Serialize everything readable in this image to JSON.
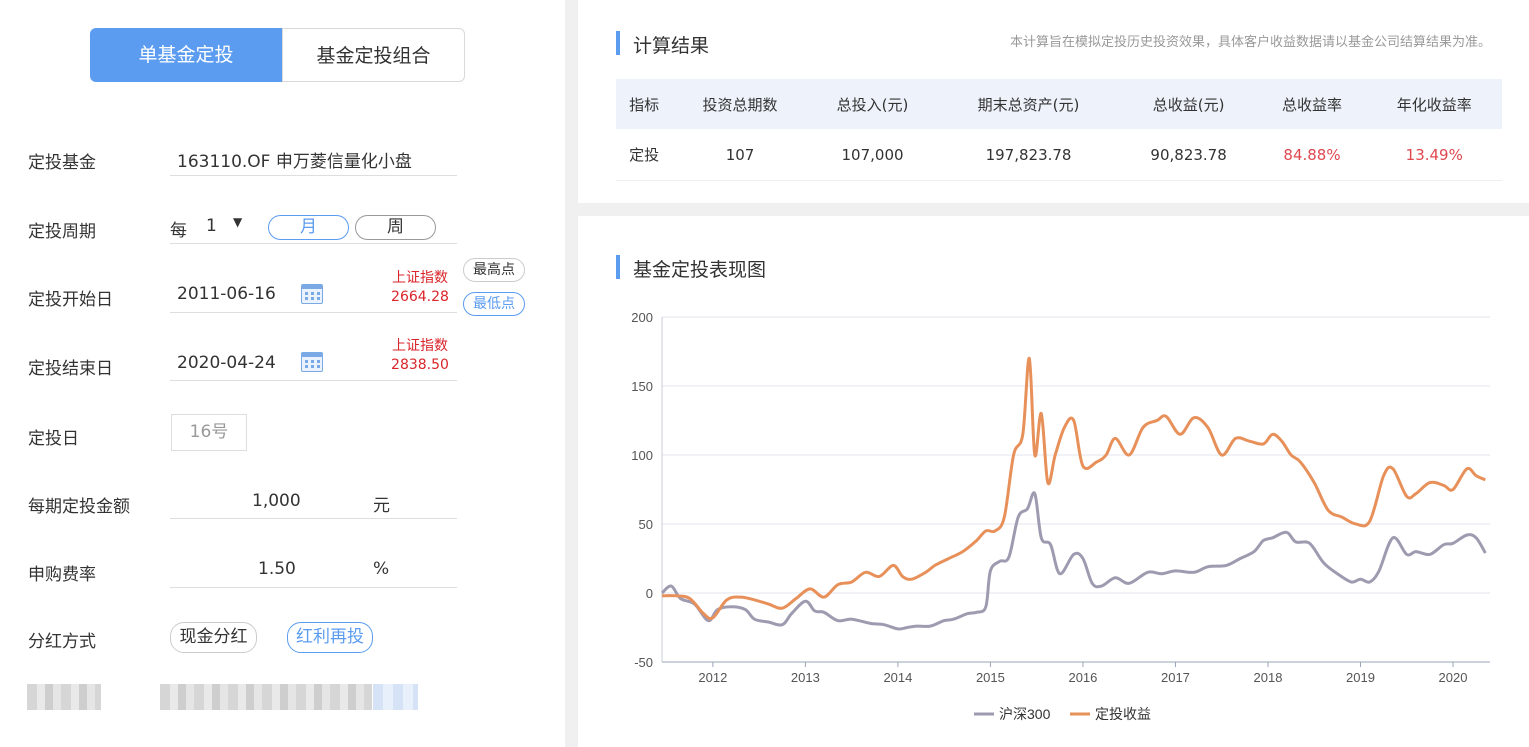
{
  "tabs": {
    "single": "单基金定投",
    "combo": "基金定投组合"
  },
  "form": {
    "fund_label": "定投基金",
    "fund_value": "163110.OF 申万菱信量化小盘",
    "cycle_label": "定投周期",
    "cycle_prefix": "每",
    "cycle_count": "1",
    "cycle_month": "月",
    "cycle_week": "周",
    "start_label": "定投开始日",
    "start_date": "2011-06-16",
    "start_index_name": "上证指数",
    "start_index_value": "2664.28",
    "highest_btn": "最高点",
    "lowest_btn": "最低点",
    "end_label": "定投结束日",
    "end_date": "2020-04-24",
    "end_index_name": "上证指数",
    "end_index_value": "2838.50",
    "day_label": "定投日",
    "day_value": "16号",
    "amount_label": "每期定投金额",
    "amount_value": "1,000",
    "amount_unit": "元",
    "fee_label": "申购费率",
    "fee_value": "1.50",
    "fee_unit": "%",
    "dividend_label": "分红方式",
    "dividend_cash": "现金分红",
    "dividend_reinvest": "红利再投"
  },
  "results": {
    "title": "计算结果",
    "note": "本计算旨在模拟定投历史投资效果，具体客户收益数据请以基金公司结算结果为准。",
    "headers": [
      "指标",
      "投资总期数",
      "总投入(元)",
      "期末总资产(元)",
      "总收益(元)",
      "总收益率",
      "年化收益率"
    ],
    "row": [
      "定投",
      "107",
      "107,000",
      "197,823.78",
      "90,823.78",
      "84.88%",
      "13.49%"
    ],
    "colors": {
      "positive": "#e0484f"
    }
  },
  "chart_section_title": "基金定投表现图",
  "chart_data": {
    "type": "line",
    "ylim": [
      -50,
      200
    ],
    "yticks": [
      200,
      150,
      100,
      50,
      0,
      -50
    ],
    "xlim": [
      2011.45,
      2020.4
    ],
    "xticks": [
      2012,
      2013,
      2014,
      2015,
      2016,
      2017,
      2018,
      2019,
      2020
    ],
    "legend_position": "bottom",
    "grid": true,
    "series": [
      {
        "name": "沪深300",
        "color": "#9e9bb0",
        "x": [
          2011.45,
          2011.55,
          2011.65,
          2011.8,
          2011.95,
          2012.05,
          2012.2,
          2012.35,
          2012.45,
          2012.6,
          2012.75,
          2012.85,
          2013.0,
          2013.1,
          2013.2,
          2013.35,
          2013.5,
          2013.7,
          2013.85,
          2014.0,
          2014.1,
          2014.2,
          2014.35,
          2014.5,
          2014.6,
          2014.75,
          2014.85,
          2014.95,
          2015.0,
          2015.1,
          2015.2,
          2015.3,
          2015.4,
          2015.48,
          2015.55,
          2015.65,
          2015.75,
          2015.9,
          2016.0,
          2016.1,
          2016.2,
          2016.35,
          2016.5,
          2016.7,
          2016.85,
          2017.0,
          2017.2,
          2017.35,
          2017.55,
          2017.7,
          2017.85,
          2017.95,
          2018.05,
          2018.2,
          2018.3,
          2018.45,
          2018.6,
          2018.75,
          2018.9,
          2019.0,
          2019.1,
          2019.2,
          2019.35,
          2019.5,
          2019.6,
          2019.75,
          2019.9,
          2020.0,
          2020.15,
          2020.25,
          2020.35
        ],
        "y": [
          0,
          5,
          -4,
          -8,
          -20,
          -12,
          -10,
          -12,
          -19,
          -21,
          -23,
          -15,
          -6,
          -13,
          -14,
          -20,
          -19,
          -22,
          -23,
          -26,
          -25,
          -24,
          -24,
          -20,
          -19,
          -15,
          -14,
          -10,
          16,
          23,
          26,
          55,
          61,
          72,
          40,
          35,
          14,
          28,
          25,
          7,
          5,
          11,
          7,
          15,
          14,
          16,
          15,
          19,
          20,
          25,
          30,
          38,
          40,
          44,
          37,
          36,
          22,
          14,
          8,
          10,
          8,
          16,
          40,
          28,
          30,
          28,
          35,
          36,
          42,
          40,
          29
        ]
      },
      {
        "name": "定投收益",
        "color": "#e8905a",
        "x": [
          2011.45,
          2011.6,
          2011.75,
          2011.9,
          2012.0,
          2012.15,
          2012.3,
          2012.45,
          2012.6,
          2012.75,
          2012.9,
          2013.05,
          2013.2,
          2013.35,
          2013.5,
          2013.65,
          2013.8,
          2013.95,
          2014.05,
          2014.15,
          2014.3,
          2014.4,
          2014.55,
          2014.7,
          2014.85,
          2014.95,
          2015.05,
          2015.15,
          2015.25,
          2015.35,
          2015.42,
          2015.48,
          2015.55,
          2015.62,
          2015.7,
          2015.8,
          2015.9,
          2016.0,
          2016.15,
          2016.25,
          2016.35,
          2016.5,
          2016.65,
          2016.8,
          2016.9,
          2017.05,
          2017.2,
          2017.35,
          2017.5,
          2017.65,
          2017.8,
          2017.95,
          2018.05,
          2018.15,
          2018.25,
          2018.35,
          2018.5,
          2018.65,
          2018.8,
          2018.95,
          2019.1,
          2019.25,
          2019.35,
          2019.5,
          2019.6,
          2019.75,
          2019.9,
          2020.0,
          2020.15,
          2020.25,
          2020.35
        ],
        "y": [
          -2,
          -2,
          -4,
          -15,
          -18,
          -5,
          -3,
          -5,
          -8,
          -11,
          -4,
          3,
          -3,
          6,
          8,
          15,
          12,
          20,
          12,
          10,
          15,
          20,
          25,
          30,
          38,
          45,
          45,
          55,
          100,
          115,
          170,
          100,
          130,
          80,
          100,
          120,
          125,
          92,
          95,
          100,
          112,
          100,
          120,
          125,
          128,
          115,
          127,
          120,
          100,
          112,
          110,
          108,
          115,
          110,
          100,
          95,
          80,
          60,
          55,
          50,
          52,
          85,
          90,
          70,
          72,
          80,
          78,
          75,
          90,
          85,
          82
        ]
      }
    ]
  }
}
